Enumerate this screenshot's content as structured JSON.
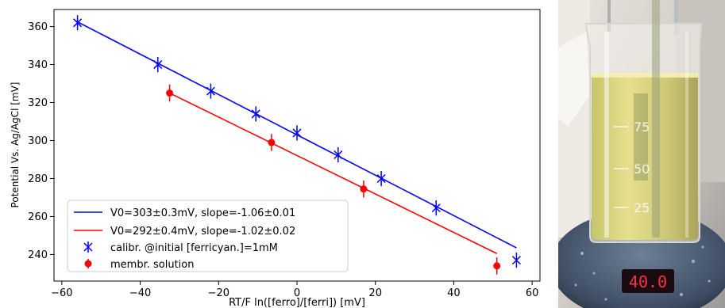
{
  "chart_data": {
    "type": "scatter",
    "xlabel": "RT/F ln([ferro]/[ferri]) [mV]",
    "ylabel": "Potential Vs. Ag/AgCl [mV]",
    "xlim": [
      -62,
      62
    ],
    "ylim": [
      226,
      369
    ],
    "x_ticks": [
      -60,
      -40,
      -20,
      0,
      20,
      40,
      60
    ],
    "x_tick_labels": [
      "−60",
      "−40",
      "−20",
      "0",
      "20",
      "40",
      "60"
    ],
    "y_ticks": [
      240,
      260,
      280,
      300,
      320,
      340,
      360
    ],
    "y_tick_labels": [
      "240",
      "260",
      "280",
      "300",
      "320",
      "340",
      "360"
    ],
    "grid": false,
    "legend_position": "lower-left",
    "series": [
      {
        "name": "V0=303±0.3mV, slope=-1.06±0.01",
        "kind": "line",
        "color": "#0000ff",
        "x": [
          -56.5,
          56
        ],
        "y": [
          363,
          243.5
        ]
      },
      {
        "name": "V0=292±0.4mV, slope=-1.02±0.02",
        "kind": "line",
        "color": "#ff0000",
        "x": [
          -32.5,
          51
        ],
        "y": [
          325,
          240.5
        ]
      },
      {
        "name": "calibr. @initial [ferricyan.]=1mM",
        "kind": "markers",
        "marker": "x",
        "color": "#0000ff",
        "x": [
          -56,
          -35.5,
          -22,
          -10.5,
          0,
          10.5,
          21.5,
          35.5,
          56
        ],
        "y": [
          362,
          340,
          326,
          314,
          304,
          292.5,
          280,
          264.5,
          237
        ],
        "yerr": 4
      },
      {
        "name": "membr. solution",
        "kind": "markers",
        "marker": "o",
        "color": "#ff0000",
        "x": [
          -32.5,
          -6.5,
          17,
          51
        ],
        "y": [
          325,
          299,
          274.5,
          234
        ],
        "yerr": 4.5
      }
    ]
  },
  "photo": {
    "marks": [
      "75",
      "50",
      "25"
    ],
    "display": "40.0"
  }
}
